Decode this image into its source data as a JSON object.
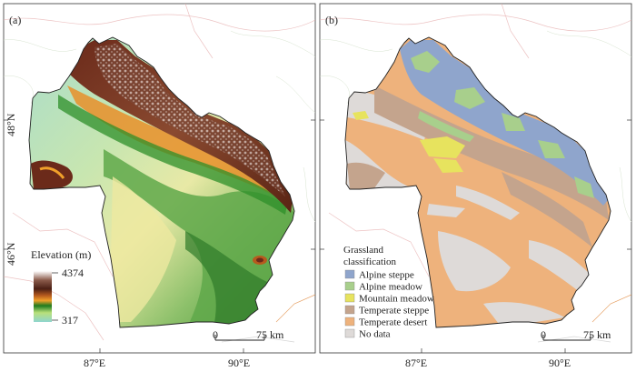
{
  "panels": [
    {
      "label": "(a)",
      "legend": {
        "title": "Elevation (m)",
        "max": "4374",
        "min": "317"
      },
      "scalebar": {
        "zero": "0",
        "end": "75 km"
      }
    },
    {
      "label": "(b)",
      "legend": {
        "title_line1": "Grassland",
        "title_line2": "classification",
        "items": [
          {
            "label": "Alpine steppe",
            "color": "#8fa5cc"
          },
          {
            "label": "Alpine meadow",
            "color": "#a8cf8c"
          },
          {
            "label": "Mountain meadow",
            "color": "#e7e35e"
          },
          {
            "label": "Temperate steppe",
            "color": "#c4a48d"
          },
          {
            "label": "Temperate desert",
            "color": "#eeb27c"
          },
          {
            "label": "No data",
            "color": "#dedad8"
          }
        ]
      },
      "scalebar": {
        "zero": "0",
        "end": "75 km"
      }
    }
  ],
  "axes": {
    "x_ticks": [
      "87°E",
      "90°E"
    ],
    "y_ticks": [
      "48°N",
      "46°N"
    ]
  }
}
